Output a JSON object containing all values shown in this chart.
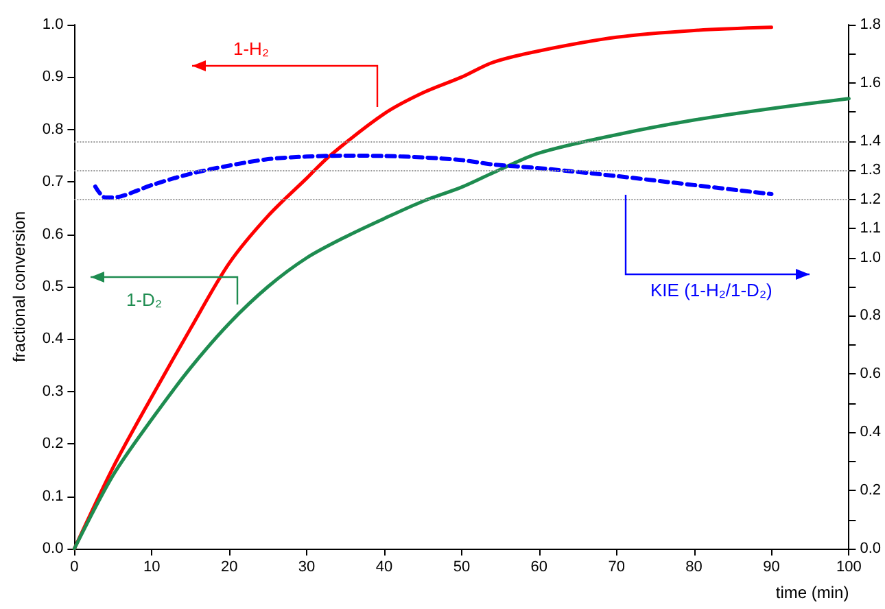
{
  "chart_data": {
    "type": "line",
    "xlabel": "time (min)",
    "ylabel": "fractional conversion",
    "xlim": [
      0,
      100
    ],
    "xticks": [
      0,
      10,
      20,
      30,
      40,
      50,
      60,
      70,
      80,
      90,
      100
    ],
    "ylim": [
      0,
      1
    ],
    "yticks": [
      {
        "value": 0,
        "label": "0.0"
      },
      0.1,
      0.2,
      0.3,
      0.4,
      0.5,
      0.6,
      0.7,
      0.8,
      0.9,
      {
        "value": 1,
        "label": "1.0"
      }
    ],
    "y2lim": [
      0,
      1.8
    ],
    "y2ticks": [
      {
        "value": 0,
        "label": "0.0"
      },
      {
        "value": 0.1,
        "label": null
      },
      0.2,
      {
        "value": 0.3,
        "label": null
      },
      0.4,
      {
        "value": 0.5,
        "label": null
      },
      0.6,
      {
        "value": 0.7,
        "label": null
      },
      0.8,
      {
        "value": 0.9,
        "label": null
      },
      {
        "value": 1,
        "label": "1.0"
      },
      1.1,
      1.2,
      1.3,
      1.4,
      {
        "value": 1.5,
        "label": null
      },
      1.6,
      {
        "value": 1.7,
        "label": null
      },
      1.8
    ],
    "grid": false,
    "legend": false,
    "marker": "none",
    "series": [
      {
        "name": "1-H₂",
        "color": "#ff0000",
        "line_style": "solid",
        "x": [
          0,
          5,
          10,
          15,
          20,
          25,
          30,
          33,
          40,
          45,
          50,
          54,
          60,
          70,
          80,
          90
        ],
        "values": [
          0,
          0.155,
          0.29,
          0.42,
          0.545,
          0.635,
          0.707,
          0.75,
          0.83,
          0.87,
          0.9,
          0.928,
          0.95,
          0.976,
          0.989,
          0.995
        ]
      },
      {
        "name": "1-D₂",
        "color": "#1e8c50",
        "line_style": "solid",
        "x": [
          0,
          5,
          10,
          15,
          20,
          25,
          30,
          35,
          40,
          45,
          50,
          54,
          60,
          70,
          80,
          90,
          100
        ],
        "values": [
          0,
          0.14,
          0.247,
          0.345,
          0.43,
          0.5,
          0.555,
          0.595,
          0.63,
          0.663,
          0.69,
          0.717,
          0.755,
          0.79,
          0.818,
          0.84,
          0.859
        ]
      },
      {
        "name": "KIE (1-H₂/1-D₂)",
        "color": "#0000ff",
        "line_style": "dashed",
        "axis": "y2",
        "x": [
          2.7,
          4,
          6,
          10,
          15,
          20,
          25,
          30,
          35,
          40,
          45,
          50,
          54,
          60,
          70,
          80,
          90
        ],
        "values": [
          1.244,
          1.206,
          1.21,
          1.249,
          1.288,
          1.316,
          1.338,
          1.347,
          1.35,
          1.349,
          1.344,
          1.335,
          1.32,
          1.307,
          1.28,
          1.249,
          1.218
        ]
      }
    ],
    "ref_lines": [
      {
        "axis": "y2",
        "value": 1.2,
        "color": "#999999",
        "line_style": "dotted"
      },
      {
        "axis": "y2",
        "value": 1.3,
        "color": "#999999",
        "line_style": "dotted"
      },
      {
        "axis": "y2",
        "value": 1.4,
        "color": "#999999",
        "line_style": "dotted"
      }
    ]
  }
}
